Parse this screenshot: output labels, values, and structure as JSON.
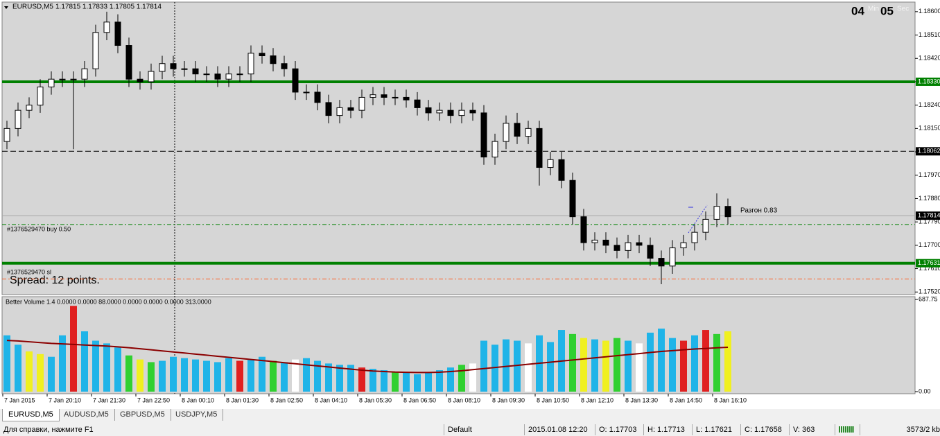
{
  "chart_data": {
    "type": "candlestick",
    "title": "EURUSD,M5",
    "ohlc_header": "1.17815 1.17833 1.17805 1.17814",
    "open": [
      1.181,
      1.1815,
      1.1822,
      1.1824,
      1.1831,
      1.1834,
      1.1834,
      1.1834,
      1.1838,
      1.1852,
      1.1856,
      1.1847,
      1.1834,
      1.1833,
      1.1837,
      1.184,
      1.1838,
      1.1838,
      1.1836,
      1.1836,
      1.1834,
      1.1836,
      1.1836,
      1.1844,
      1.1843,
      1.184,
      1.1838,
      1.1829,
      1.1829,
      1.1825,
      1.182,
      1.1823,
      1.1822,
      1.1827,
      1.1828,
      1.1827,
      1.1827,
      1.1826,
      1.1823,
      1.1821,
      1.1822,
      1.182,
      1.1822,
      1.1821,
      1.1804,
      1.181,
      1.1817,
      1.1812,
      1.1815,
      1.18,
      1.1803,
      1.1795,
      1.1781,
      1.1771,
      1.1772,
      1.177,
      1.1768,
      1.1771,
      1.177,
      1.1765,
      1.1762,
      1.1769,
      1.1771,
      1.1775,
      1.178,
      1.1785
    ],
    "high": [
      1.1818,
      1.1825,
      1.1827,
      1.1834,
      1.1837,
      1.1837,
      1.1837,
      1.1841,
      1.1855,
      1.186,
      1.1859,
      1.185,
      1.1837,
      1.184,
      1.1843,
      1.1843,
      1.1841,
      1.1841,
      1.1839,
      1.1839,
      1.1839,
      1.1839,
      1.1847,
      1.1847,
      1.1846,
      1.1843,
      1.1841,
      1.1832,
      1.1832,
      1.1828,
      1.1826,
      1.1826,
      1.183,
      1.1831,
      1.1831,
      1.183,
      1.183,
      1.1829,
      1.1826,
      1.1825,
      1.1825,
      1.1825,
      1.1825,
      1.1824,
      1.1813,
      1.182,
      1.1821,
      1.1818,
      1.1818,
      1.1806,
      1.1806,
      1.1798,
      1.1784,
      1.1775,
      1.1775,
      1.1773,
      1.1774,
      1.1774,
      1.1773,
      1.1768,
      1.1772,
      1.1774,
      1.1778,
      1.1783,
      1.179,
      1.1788
    ],
    "low": [
      1.1807,
      1.1812,
      1.1819,
      1.1821,
      1.1828,
      1.1831,
      1.1807,
      1.1831,
      1.1835,
      1.1849,
      1.1844,
      1.1831,
      1.183,
      1.183,
      1.1834,
      1.1835,
      1.1835,
      1.1833,
      1.1833,
      1.1831,
      1.1831,
      1.1833,
      1.1833,
      1.184,
      1.1837,
      1.1835,
      1.1826,
      1.1826,
      1.1822,
      1.1817,
      1.1817,
      1.1819,
      1.1819,
      1.1824,
      1.1824,
      1.1824,
      1.1823,
      1.182,
      1.1818,
      1.1818,
      1.1817,
      1.1817,
      1.1818,
      1.1801,
      1.1801,
      1.1807,
      1.1809,
      1.1809,
      1.1793,
      1.1797,
      1.1792,
      1.1778,
      1.1768,
      1.1768,
      1.1767,
      1.1765,
      1.1765,
      1.1767,
      1.1762,
      1.1755,
      1.1759,
      1.1766,
      1.1768,
      1.1772,
      1.1777,
      1.1778
    ],
    "close": [
      1.1815,
      1.1822,
      1.1824,
      1.1831,
      1.1834,
      1.1834,
      1.1834,
      1.1838,
      1.1852,
      1.1856,
      1.1847,
      1.1834,
      1.1833,
      1.1837,
      1.184,
      1.1838,
      1.1838,
      1.1836,
      1.1836,
      1.1834,
      1.1836,
      1.1836,
      1.1844,
      1.1843,
      1.184,
      1.1838,
      1.1829,
      1.1829,
      1.1825,
      1.182,
      1.1823,
      1.1822,
      1.1827,
      1.1828,
      1.1827,
      1.1827,
      1.1826,
      1.1823,
      1.1821,
      1.1822,
      1.182,
      1.1822,
      1.1821,
      1.1804,
      1.181,
      1.1817,
      1.1812,
      1.1815,
      1.18,
      1.1803,
      1.1795,
      1.1781,
      1.1771,
      1.1772,
      1.177,
      1.1768,
      1.1771,
      1.177,
      1.1765,
      1.1762,
      1.1769,
      1.1771,
      1.1775,
      1.178,
      1.1785,
      1.1781
    ],
    "ylim": [
      1.1751,
      1.18637
    ],
    "yticks": [
      {
        "value": 1.186,
        "label": "1.18600"
      },
      {
        "value": 1.1851,
        "label": "1.18510"
      },
      {
        "value": 1.1842,
        "label": "1.18420"
      },
      {
        "value": 1.1833,
        "label": "1.18330"
      },
      {
        "value": 1.1824,
        "label": "1.18240"
      },
      {
        "value": 1.1815,
        "label": "1.18150"
      },
      {
        "value": 1.1806,
        "label": "1.18060"
      },
      {
        "value": 1.1797,
        "label": "1.17970"
      },
      {
        "value": 1.1788,
        "label": "1.17880"
      },
      {
        "value": 1.1779,
        "label": "1.17790"
      },
      {
        "value": 1.177,
        "label": "1.17700"
      },
      {
        "value": 1.1761,
        "label": "1.17610"
      },
      {
        "value": 1.1752,
        "label": "1.17520"
      }
    ],
    "xticks": [
      {
        "value": 0,
        "label": "7 Jan 2015"
      },
      {
        "value": 4,
        "label": "7 Jan 20:10"
      },
      {
        "value": 8,
        "label": "7 Jan 21:30"
      },
      {
        "value": 12,
        "label": "7 Jan 22:50"
      },
      {
        "value": 16,
        "label": "8 Jan 00:10"
      },
      {
        "value": 20,
        "label": "8 Jan 01:30"
      },
      {
        "value": 24,
        "label": "8 Jan 02:50"
      },
      {
        "value": 28,
        "label": "8 Jan 04:10"
      },
      {
        "value": 32,
        "label": "8 Jan 05:30"
      },
      {
        "value": 36,
        "label": "8 Jan 06:50"
      },
      {
        "value": 40,
        "label": "8 Jan 08:10"
      },
      {
        "value": 44,
        "label": "8 Jan 09:30"
      },
      {
        "value": 48,
        "label": "8 Jan 10:50"
      },
      {
        "value": 52,
        "label": "8 Jan 12:10"
      },
      {
        "value": 56,
        "label": "8 Jan 13:30"
      },
      {
        "value": 60,
        "label": "8 Jan 14:50"
      },
      {
        "value": 64,
        "label": "8 Jan 16:10"
      }
    ],
    "levels": [
      {
        "value": 1.1833,
        "label": "1.18330",
        "color": "#008000",
        "style": "solid"
      },
      {
        "value": 1.18062,
        "label": "1.18062",
        "color": "#000000",
        "style": "dash"
      },
      {
        "value": 1.17814,
        "label": "1.17814",
        "color": "#a8a8a8",
        "style": "thin"
      },
      {
        "value": 1.1778,
        "color": "#008000",
        "style": "dashdot"
      },
      {
        "value": 1.17631,
        "label": "1.17631",
        "color": "#008000",
        "style": "solid"
      },
      {
        "value": 1.1757,
        "color": "#ff5a1e",
        "style": "dashdot"
      }
    ],
    "order_buy": "#1376529470 buy 0.50",
    "order_sl": "#1376529470 sl",
    "spread": "Spread: 12 points.",
    "razgon": "Разгон 0.83",
    "timer_min": "04",
    "timer_sec": "05",
    "timer_min_label": "Min",
    "timer_sec_label": "Sec",
    "volume": {
      "title": "Better Volume 1.4 0.0000 0.0000 88.0000 0.0000 0.0000 0.0000 313.0000",
      "values": [
        420,
        350,
        300,
        280,
        260,
        420,
        640,
        450,
        380,
        360,
        330,
        270,
        240,
        220,
        230,
        260,
        250,
        240,
        230,
        220,
        250,
        230,
        240,
        260,
        230,
        220,
        240,
        250,
        230,
        210,
        200,
        200,
        180,
        170,
        160,
        150,
        140,
        130,
        140,
        160,
        180,
        200,
        210,
        380,
        350,
        390,
        380,
        360,
        420,
        370,
        460,
        430,
        400,
        390,
        380,
        400,
        380,
        360,
        440,
        470,
        400,
        380,
        420,
        460,
        430,
        450
      ],
      "colors": [
        "#1fb4e8",
        "#1fb4e8",
        "#f0f020",
        "#f0f020",
        "#1fb4e8",
        "#1fb4e8",
        "#e02020",
        "#1fb4e8",
        "#1fb4e8",
        "#1fb4e8",
        "#1fb4e8",
        "#30d030",
        "#f0f020",
        "#30d030",
        "#1fb4e8",
        "#1fb4e8",
        "#1fb4e8",
        "#1fb4e8",
        "#1fb4e8",
        "#1fb4e8",
        "#1fb4e8",
        "#e02020",
        "#1fb4e8",
        "#1fb4e8",
        "#30d030",
        "#1fb4e8",
        "#ffffff",
        "#1fb4e8",
        "#1fb4e8",
        "#1fb4e8",
        "#1fb4e8",
        "#1fb4e8",
        "#e02020",
        "#1fb4e8",
        "#1fb4e8",
        "#30d030",
        "#1fb4e8",
        "#1fb4e8",
        "#1fb4e8",
        "#1fb4e8",
        "#1fb4e8",
        "#30d030",
        "#ffffff",
        "#1fb4e8",
        "#1fb4e8",
        "#1fb4e8",
        "#1fb4e8",
        "#ffffff",
        "#1fb4e8",
        "#1fb4e8",
        "#1fb4e8",
        "#30d030",
        "#f0f020",
        "#1fb4e8",
        "#f0f020",
        "#30d030",
        "#1fb4e8",
        "#ffffff",
        "#1fb4e8",
        "#1fb4e8",
        "#1fb4e8",
        "#e02020",
        "#1fb4e8",
        "#e02020",
        "#30d030",
        "#f0f020"
      ],
      "ma": [
        382,
        378,
        372,
        366,
        360,
        356,
        352,
        348,
        344,
        340,
        334,
        328,
        320,
        312,
        304,
        296,
        288,
        280,
        272,
        264,
        256,
        248,
        240,
        232,
        224,
        216,
        208,
        200,
        192,
        184,
        176,
        168,
        160,
        154,
        150,
        146,
        144,
        143,
        143,
        145,
        150,
        156,
        164,
        172,
        180,
        188,
        196,
        204,
        212,
        220,
        228,
        236,
        244,
        252,
        260,
        268,
        276,
        284,
        292,
        300,
        306,
        312,
        318,
        322,
        327,
        331
      ],
      "ma_color": "#8b0000",
      "ylim": [
        0,
        687.75
      ],
      "yticks": [
        687.75,
        {
          "value": 0,
          "label": "0.00"
        }
      ]
    }
  },
  "tabs": [
    "EURUSD,M5",
    "AUDUSD,M5",
    "GBPUSD,M5",
    "USDJPY,M5"
  ],
  "status": {
    "help": "Для справки, нажмите F1",
    "profile": "Default",
    "time": "2015.01.08 12:20",
    "open": "O: 1.17703",
    "high": "H: 1.17713",
    "low": "L: 1.17621",
    "close": "C: 1.17658",
    "volume": "V: 363",
    "traffic": "3573/2 kb"
  }
}
